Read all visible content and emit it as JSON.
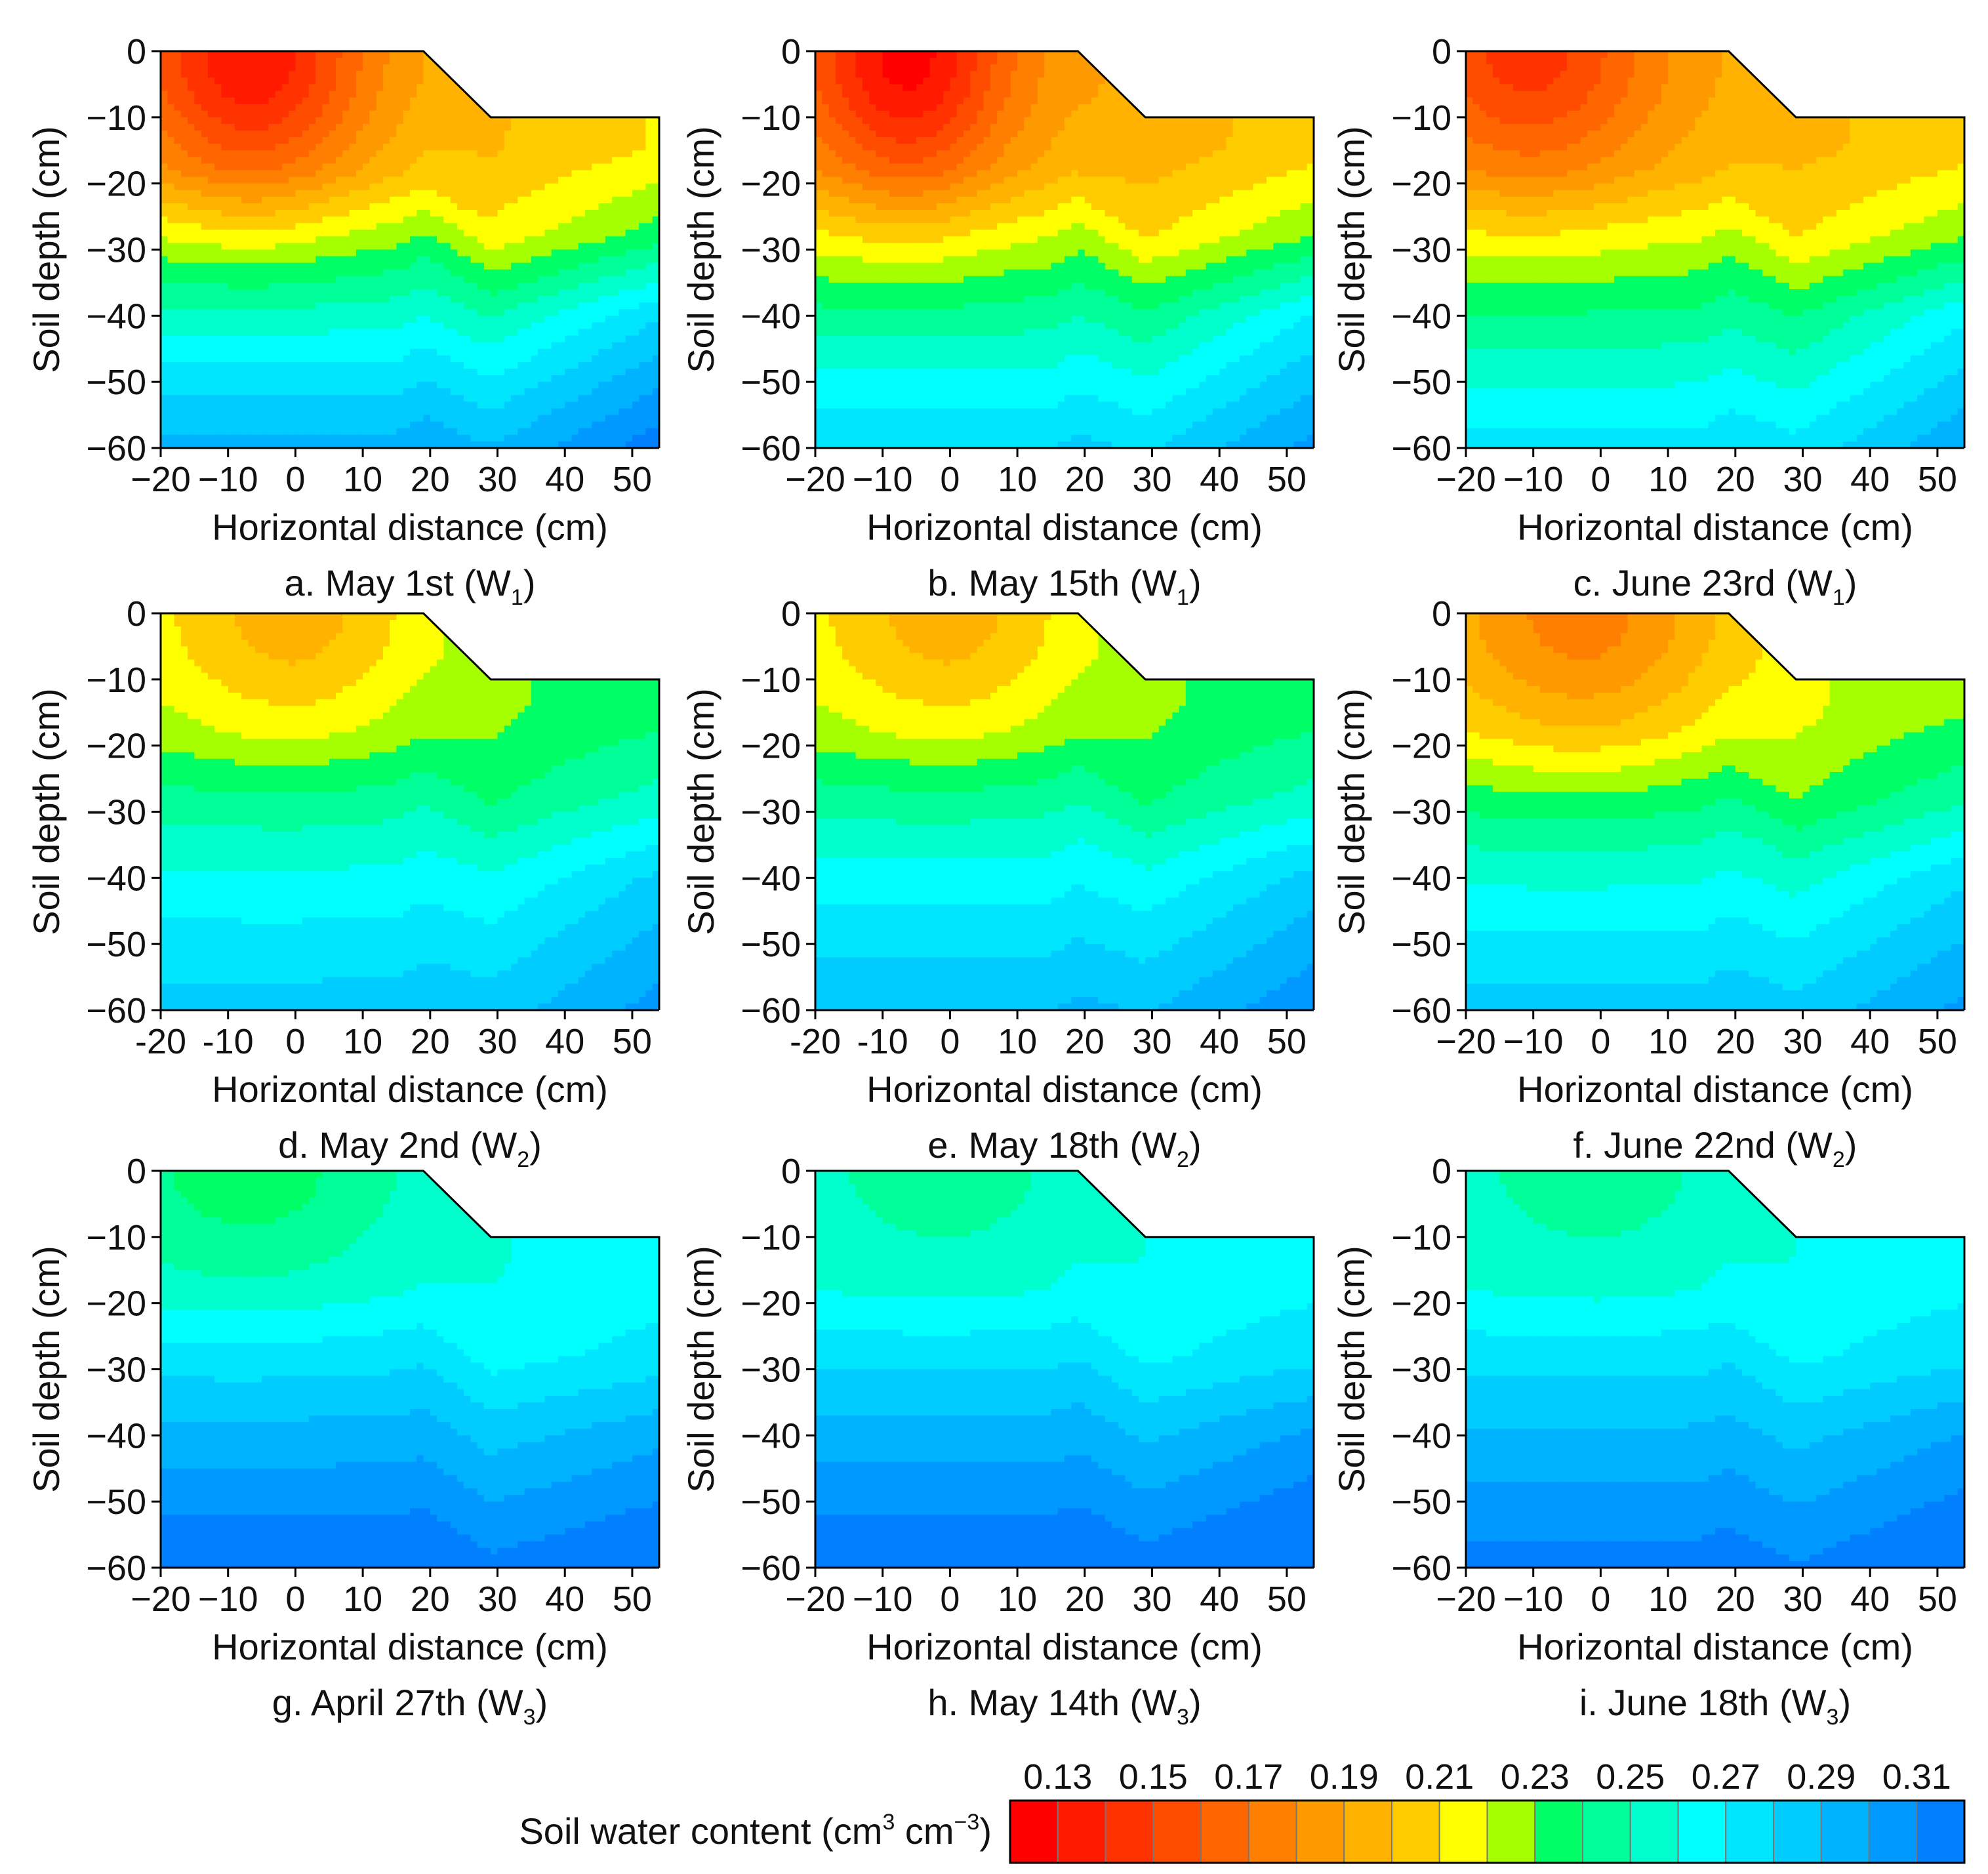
{
  "chart_data": {
    "type": "heatmap",
    "subtype": "contour",
    "xlabel": "Horizontal distance (cm)",
    "ylabel": "Soil depth (cm)",
    "xlim": [
      -20,
      54
    ],
    "ylim": [
      -60,
      0
    ],
    "x_ticks": [
      "−20",
      "−10",
      "0",
      "10",
      "20",
      "30",
      "40",
      "50"
    ],
    "x_ticks_alt": [
      "-20",
      "-10",
      "0",
      "10",
      "20",
      "30",
      "40",
      "50"
    ],
    "y_ticks": [
      "0",
      "−10",
      "−20",
      "−30",
      "−40",
      "−50",
      "−60"
    ],
    "surface_profile": {
      "flat_top_depth": 0,
      "slope_from_x": 19,
      "slope_to_x": 29,
      "furrow_depth": -10
    },
    "colorbar": {
      "label_main": "Soil water content (cm",
      "label_sup1": "3",
      "label_mid": " cm",
      "label_sup2": "−3",
      "label_end": ")",
      "tick_labels": [
        "0.13",
        "0.15",
        "0.17",
        "0.19",
        "0.21",
        "0.23",
        "0.25",
        "0.27",
        "0.29",
        "0.31"
      ],
      "levels": [
        0.12,
        0.13,
        0.14,
        0.15,
        0.16,
        0.17,
        0.18,
        0.19,
        0.2,
        0.21,
        0.22,
        0.23,
        0.24,
        0.25,
        0.26,
        0.27,
        0.28,
        0.29,
        0.3,
        0.31,
        0.32
      ],
      "colors": [
        "#ff0000",
        "#ff1a00",
        "#ff3300",
        "#ff4d00",
        "#ff6600",
        "#ff8000",
        "#ff9900",
        "#ffb300",
        "#ffcc00",
        "#ffff00",
        "#a6ff00",
        "#00ff66",
        "#00ff99",
        "#00ffcc",
        "#00ffff",
        "#00e6ff",
        "#00ccff",
        "#00b3ff",
        "#0099ff",
        "#0080ff"
      ]
    },
    "panels": [
      {
        "letter": "a.",
        "date": "May 1st",
        "treatment": "W",
        "sub": "1",
        "field": {
          "base": 0.225,
          "top": 0.13,
          "basin_cx": -6,
          "basin_w": 16,
          "basin_d": 22,
          "deep_inc": 0.07,
          "right_inc": 0.04
        }
      },
      {
        "letter": "b.",
        "date": "May 15th",
        "treatment": "W",
        "sub": "1",
        "field": {
          "base": 0.22,
          "top": 0.125,
          "basin_cx": -6,
          "basin_w": 14,
          "basin_d": 22,
          "deep_inc": 0.06,
          "right_inc": 0.04
        }
      },
      {
        "letter": "c.",
        "date": "June 23rd",
        "treatment": "W",
        "sub": "1",
        "field": {
          "base": 0.215,
          "top": 0.145,
          "basin_cx": -10,
          "basin_w": 18,
          "basin_d": 20,
          "deep_inc": 0.06,
          "right_inc": 0.04
        }
      },
      {
        "letter": "d.",
        "date": "May 2nd",
        "treatment": "W",
        "sub": "2",
        "field": {
          "base": 0.245,
          "top": 0.195,
          "basin_cx": 0,
          "basin_w": 20,
          "basin_d": 20,
          "deep_inc": 0.04,
          "right_inc": 0.03
        }
      },
      {
        "letter": "e.",
        "date": "May 18th",
        "treatment": "W",
        "sub": "2",
        "field": {
          "base": 0.245,
          "top": 0.195,
          "basin_cx": 0,
          "basin_w": 20,
          "basin_d": 20,
          "deep_inc": 0.045,
          "right_inc": 0.03
        }
      },
      {
        "letter": "f.",
        "date": "June 22nd",
        "treatment": "W",
        "sub": "2",
        "field": {
          "base": 0.24,
          "top": 0.175,
          "basin_cx": -2,
          "basin_w": 22,
          "basin_d": 22,
          "deep_inc": 0.045,
          "right_inc": 0.03
        }
      },
      {
        "letter": "g.",
        "date": "April 27th",
        "treatment": "W",
        "sub": "3",
        "field": {
          "base": 0.27,
          "top": 0.235,
          "basin_cx": -6,
          "basin_w": 22,
          "basin_d": 18,
          "deep_inc": 0.05,
          "right_inc": 0.015
        }
      },
      {
        "letter": "h.",
        "date": "May 14th",
        "treatment": "W",
        "sub": "3",
        "field": {
          "base": 0.27,
          "top": 0.245,
          "basin_cx": 0,
          "basin_w": 22,
          "basin_d": 18,
          "deep_inc": 0.05,
          "right_inc": 0.02
        }
      },
      {
        "letter": "i.",
        "date": "June 18th",
        "treatment": "W",
        "sub": "3",
        "field": {
          "base": 0.27,
          "top": 0.245,
          "basin_cx": 0,
          "basin_w": 22,
          "basin_d": 18,
          "deep_inc": 0.045,
          "right_inc": 0.02
        }
      }
    ]
  }
}
